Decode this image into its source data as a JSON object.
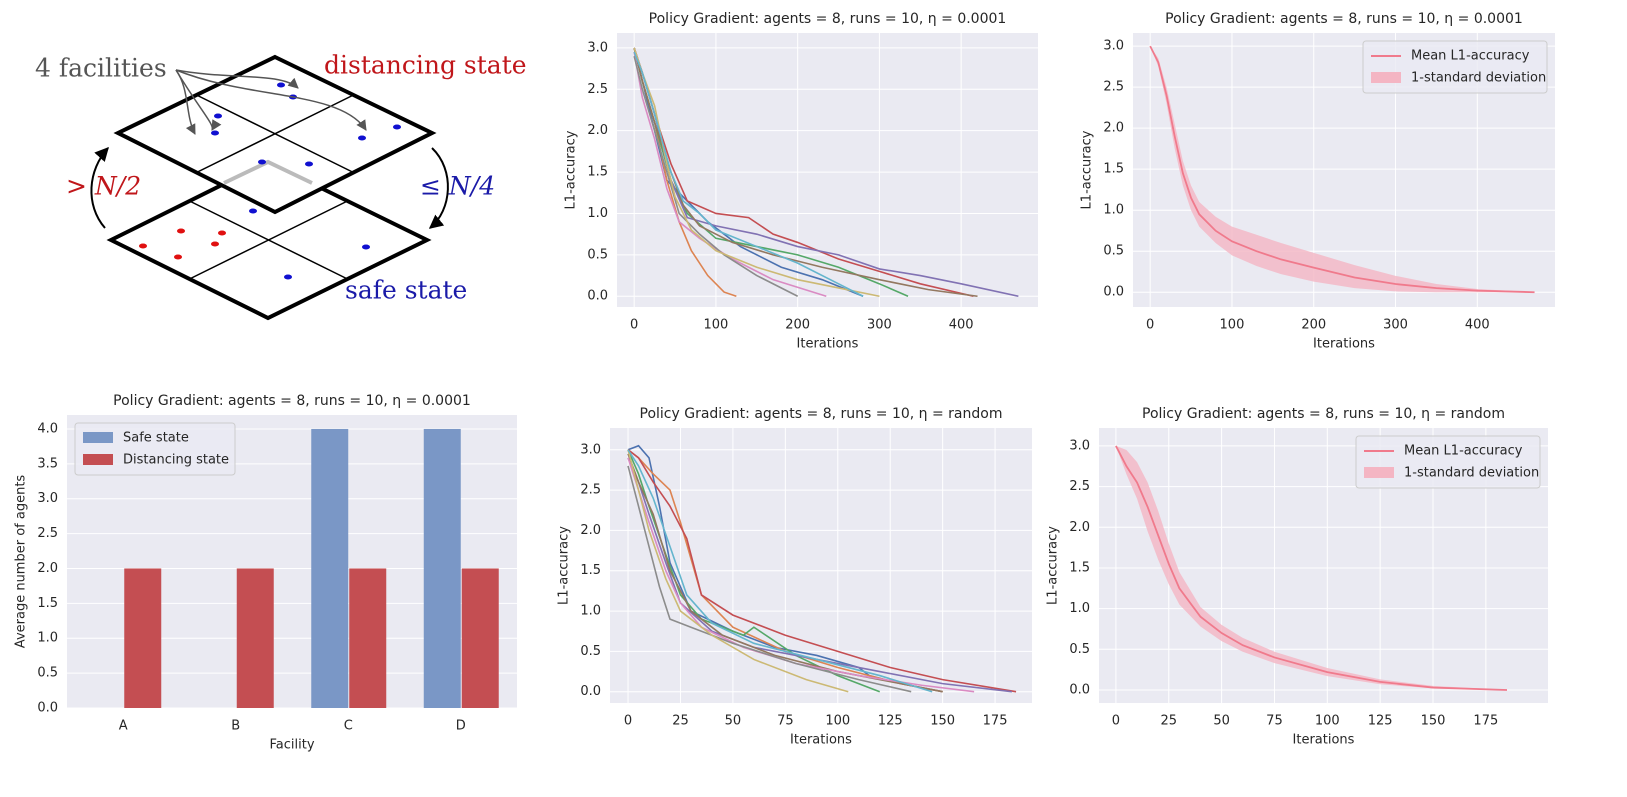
{
  "diagram": {
    "facilities": "4 facilities",
    "distancing": "distancing state",
    "up_label": "> N/2",
    "down_label": "≤ N/4",
    "safe": "safe state"
  },
  "chart_data": [
    {
      "type": "line",
      "title": "Policy Gradient: agents = 8, runs = 10, η = 0.0001",
      "xlabel": "Iterations",
      "ylabel": "L1-accuracy",
      "xlim": [
        -21,
        494
      ],
      "ylim": [
        -0.13,
        3.18
      ],
      "xticks": [
        0,
        100,
        200,
        300,
        400
      ],
      "yticks": [
        {
          "value": 0,
          "label": "0.0"
        },
        0.5,
        {
          "value": 1,
          "label": "1.0"
        },
        1.5,
        {
          "value": 2,
          "label": "2.0"
        },
        2.5,
        {
          "value": 3,
          "label": "3.0"
        }
      ],
      "grid": true,
      "series": [
        {
          "color": "#4c72b0",
          "x": [
            0,
            10,
            25,
            40,
            60,
            90,
            130,
            180,
            230,
            280
          ],
          "values": [
            3.0,
            2.6,
            2.0,
            1.4,
            1.2,
            0.9,
            0.6,
            0.35,
            0.2,
            0.0
          ]
        },
        {
          "color": "#dd8452",
          "x": [
            0,
            10,
            25,
            40,
            55,
            70,
            90,
            110,
            125
          ],
          "values": [
            3.0,
            2.6,
            2.1,
            1.4,
            0.9,
            0.55,
            0.25,
            0.05,
            0.0
          ]
        },
        {
          "color": "#55a868",
          "x": [
            0,
            10,
            25,
            45,
            65,
            100,
            150,
            200,
            250,
            300,
            335
          ],
          "values": [
            3.0,
            2.6,
            2.1,
            1.4,
            1.0,
            0.7,
            0.6,
            0.5,
            0.35,
            0.15,
            0.0
          ]
        },
        {
          "color": "#c44e52",
          "x": [
            0,
            10,
            25,
            45,
            65,
            100,
            140,
            170,
            200,
            250,
            300,
            350,
            415
          ],
          "values": [
            3.0,
            2.7,
            2.2,
            1.6,
            1.15,
            1.0,
            0.95,
            0.75,
            0.65,
            0.45,
            0.3,
            0.15,
            0.0
          ]
        },
        {
          "color": "#8172b3",
          "x": [
            0,
            10,
            25,
            45,
            65,
            100,
            150,
            200,
            250,
            300,
            350,
            400,
            470
          ],
          "values": [
            3.0,
            2.7,
            2.2,
            1.4,
            0.95,
            0.85,
            0.75,
            0.6,
            0.5,
            0.33,
            0.25,
            0.15,
            0.0
          ]
        },
        {
          "color": "#937860",
          "x": [
            0,
            10,
            25,
            45,
            60,
            80,
            120,
            170,
            230,
            300,
            360,
            420
          ],
          "values": [
            3.0,
            2.6,
            2.1,
            1.5,
            1.1,
            0.85,
            0.65,
            0.5,
            0.35,
            0.2,
            0.08,
            0.0
          ]
        },
        {
          "color": "#da8bc3",
          "x": [
            0,
            10,
            25,
            40,
            55,
            80,
            120,
            170,
            235
          ],
          "values": [
            2.95,
            2.4,
            1.9,
            1.3,
            0.9,
            0.7,
            0.45,
            0.2,
            0.0
          ]
        },
        {
          "color": "#8c8c8c",
          "x": [
            0,
            10,
            25,
            40,
            55,
            80,
            110,
            150,
            200
          ],
          "values": [
            2.9,
            2.5,
            2.0,
            1.5,
            1.0,
            0.75,
            0.5,
            0.25,
            0.0
          ]
        },
        {
          "color": "#ccb974",
          "x": [
            0,
            10,
            25,
            40,
            50,
            70,
            100,
            150,
            200,
            250,
            300
          ],
          "values": [
            3.0,
            2.7,
            2.3,
            1.6,
            1.2,
            0.8,
            0.55,
            0.35,
            0.2,
            0.1,
            0.0
          ]
        },
        {
          "color": "#64b5cd",
          "x": [
            0,
            10,
            25,
            45,
            60,
            80,
            100,
            150,
            200,
            250,
            280
          ],
          "values": [
            2.95,
            2.7,
            2.2,
            1.5,
            1.15,
            1.0,
            0.8,
            0.6,
            0.4,
            0.15,
            0.0
          ]
        }
      ]
    },
    {
      "type": "line_band",
      "title": "Policy Gradient: agents = 8, runs = 10, η = 0.0001",
      "xlabel": "Iterations",
      "ylabel": "L1-accuracy",
      "xlim": [
        -21,
        495
      ],
      "ylim": [
        -0.18,
        3.16
      ],
      "xticks": [
        0,
        100,
        200,
        300,
        400
      ],
      "yticks": [
        {
          "value": 0,
          "label": "0.0"
        },
        0.5,
        {
          "value": 1,
          "label": "1.0"
        },
        1.5,
        {
          "value": 2,
          "label": "2.0"
        },
        2.5,
        {
          "value": 3,
          "label": "3.0"
        }
      ],
      "grid": true,
      "legend": "upper right",
      "x": [
        0,
        10,
        20,
        30,
        40,
        50,
        60,
        80,
        100,
        130,
        160,
        200,
        250,
        300,
        350,
        400,
        470
      ],
      "series": [
        {
          "name": "Mean L1-accuracy",
          "color": "#f07a8c",
          "values": [
            3.0,
            2.8,
            2.4,
            1.9,
            1.45,
            1.15,
            0.95,
            0.75,
            0.62,
            0.5,
            0.4,
            0.3,
            0.18,
            0.1,
            0.05,
            0.02,
            0.0
          ]
        }
      ],
      "band": {
        "name": "1-standard deviation",
        "color": "#f4b5c3",
        "lower": [
          3.0,
          2.75,
          2.3,
          1.75,
          1.3,
          1.0,
          0.8,
          0.6,
          0.45,
          0.32,
          0.22,
          0.13,
          0.05,
          0.01,
          0.0,
          0.0,
          0.0
        ],
        "upper": [
          3.0,
          2.85,
          2.5,
          2.05,
          1.6,
          1.3,
          1.1,
          0.92,
          0.8,
          0.7,
          0.6,
          0.48,
          0.33,
          0.2,
          0.1,
          0.04,
          0.0
        ]
      }
    },
    {
      "type": "bar",
      "title": "Policy Gradient: agents = 8, runs = 10, η = 0.0001",
      "xlabel": "Facility",
      "ylabel": "Average number of agents",
      "categories": [
        "A",
        "B",
        "C",
        "D"
      ],
      "ylim": [
        0,
        4.2
      ],
      "yticks": [
        {
          "value": 0,
          "label": "0.0"
        },
        0.5,
        {
          "value": 1,
          "label": "1.0"
        },
        1.5,
        {
          "value": 2,
          "label": "2.0"
        },
        2.5,
        {
          "value": 3,
          "label": "3.0"
        },
        3.5,
        {
          "value": 4,
          "label": "4.0"
        }
      ],
      "grid": true,
      "legend": "upper left",
      "series": [
        {
          "name": "Safe state",
          "color": "#7a97c6",
          "values": [
            0,
            0,
            4,
            4
          ]
        },
        {
          "name": "Distancing state",
          "color": "#c44e52",
          "values": [
            2,
            2,
            2,
            2
          ]
        }
      ]
    },
    {
      "type": "line",
      "title": "Policy Gradient: agents = 8, runs = 10, η = random",
      "xlabel": "Iterations",
      "ylabel": "L1-accuracy",
      "xlim": [
        -8.6,
        192.6
      ],
      "ylim": [
        -0.14,
        3.27
      ],
      "xticks": [
        0,
        25,
        50,
        75,
        100,
        125,
        150,
        175
      ],
      "yticks": [
        {
          "value": 0,
          "label": "0.0"
        },
        0.5,
        {
          "value": 1,
          "label": "1.0"
        },
        1.5,
        {
          "value": 2,
          "label": "2.0"
        },
        2.5,
        {
          "value": 3,
          "label": "3.0"
        }
      ],
      "grid": true,
      "series": [
        {
          "color": "#4c72b0",
          "x": [
            0,
            5,
            10,
            15,
            20,
            30,
            50,
            70,
            90,
            110,
            115,
            130,
            150
          ],
          "values": [
            3.0,
            3.05,
            2.9,
            2.3,
            1.6,
            1.0,
            0.75,
            0.55,
            0.45,
            0.3,
            0.2,
            0.1,
            0.0
          ]
        },
        {
          "color": "#dd8452",
          "x": [
            0,
            5,
            12,
            20,
            25,
            35,
            50,
            75,
            100,
            130,
            150
          ],
          "values": [
            3.0,
            2.9,
            2.7,
            2.5,
            2.1,
            1.2,
            0.8,
            0.5,
            0.3,
            0.1,
            0.0
          ]
        },
        {
          "color": "#55a868",
          "x": [
            0,
            5,
            10,
            18,
            25,
            35,
            55,
            60,
            80,
            100,
            120
          ],
          "values": [
            3.0,
            2.7,
            2.3,
            1.7,
            1.2,
            0.9,
            0.7,
            0.8,
            0.45,
            0.2,
            0.0
          ]
        },
        {
          "color": "#c44e52",
          "x": [
            0,
            5,
            12,
            20,
            28,
            35,
            50,
            75,
            100,
            125,
            150,
            185
          ],
          "values": [
            3.0,
            2.9,
            2.6,
            2.3,
            1.9,
            1.2,
            0.95,
            0.7,
            0.5,
            0.3,
            0.15,
            0.0
          ]
        },
        {
          "color": "#8172b3",
          "x": [
            0,
            5,
            10,
            18,
            25,
            40,
            60,
            90,
            120,
            150,
            183
          ],
          "values": [
            2.9,
            2.6,
            2.2,
            1.6,
            1.1,
            0.75,
            0.55,
            0.4,
            0.25,
            0.1,
            0.0
          ]
        },
        {
          "color": "#937860",
          "x": [
            0,
            5,
            12,
            20,
            30,
            45,
            70,
            100,
            130,
            150
          ],
          "values": [
            2.95,
            2.6,
            2.2,
            1.5,
            1.0,
            0.7,
            0.45,
            0.25,
            0.1,
            0.0
          ]
        },
        {
          "color": "#da8bc3",
          "x": [
            0,
            5,
            10,
            18,
            25,
            35,
            55,
            80,
            110,
            140,
            165
          ],
          "values": [
            2.9,
            2.5,
            2.1,
            1.5,
            1.1,
            0.8,
            0.55,
            0.35,
            0.2,
            0.08,
            0.0
          ]
        },
        {
          "color": "#8c8c8c",
          "x": [
            0,
            5,
            10,
            15,
            20,
            30,
            50,
            80,
            110,
            135
          ],
          "values": [
            2.8,
            2.3,
            1.8,
            1.3,
            0.9,
            0.8,
            0.6,
            0.35,
            0.15,
            0.0
          ]
        },
        {
          "color": "#ccb974",
          "x": [
            0,
            5,
            10,
            18,
            25,
            40,
            60,
            85,
            105
          ],
          "values": [
            3.0,
            2.5,
            2.0,
            1.4,
            1.0,
            0.7,
            0.4,
            0.15,
            0.0
          ]
        },
        {
          "color": "#64b5cd",
          "x": [
            0,
            5,
            12,
            20,
            28,
            40,
            60,
            90,
            120,
            145
          ],
          "values": [
            3.0,
            2.8,
            2.4,
            1.8,
            1.2,
            0.85,
            0.6,
            0.4,
            0.2,
            0.0
          ]
        }
      ]
    },
    {
      "type": "line_band",
      "title": "Policy Gradient: agents = 8, runs = 10, η = random",
      "xlabel": "Iterations",
      "ylabel": "L1-accuracy",
      "xlim": [
        -8,
        204.4
      ],
      "ylim": [
        -0.16,
        3.22
      ],
      "xticks": [
        0,
        25,
        50,
        75,
        100,
        125,
        150,
        175
      ],
      "yticks": [
        {
          "value": 0,
          "label": "0.0"
        },
        0.5,
        {
          "value": 1,
          "label": "1.0"
        },
        1.5,
        {
          "value": 2,
          "label": "2.0"
        },
        2.5,
        {
          "value": 3,
          "label": "3.0"
        }
      ],
      "grid": true,
      "legend": "upper right",
      "x": [
        0,
        5,
        10,
        15,
        20,
        25,
        30,
        40,
        50,
        60,
        75,
        100,
        125,
        150,
        185
      ],
      "series": [
        {
          "name": "Mean L1-accuracy",
          "color": "#f07a8c",
          "values": [
            3.0,
            2.75,
            2.55,
            2.25,
            1.9,
            1.55,
            1.25,
            0.9,
            0.7,
            0.55,
            0.4,
            0.22,
            0.1,
            0.03,
            0.0
          ]
        }
      ],
      "band": {
        "name": "1-standard deviation",
        "color": "#f4b5c3",
        "lower": [
          3.0,
          2.65,
          2.35,
          1.95,
          1.6,
          1.3,
          1.05,
          0.78,
          0.6,
          0.47,
          0.33,
          0.17,
          0.07,
          0.02,
          0.0
        ],
        "upper": [
          3.0,
          2.95,
          2.8,
          2.55,
          2.2,
          1.8,
          1.45,
          1.02,
          0.8,
          0.64,
          0.47,
          0.27,
          0.13,
          0.05,
          0.0
        ]
      }
    }
  ]
}
